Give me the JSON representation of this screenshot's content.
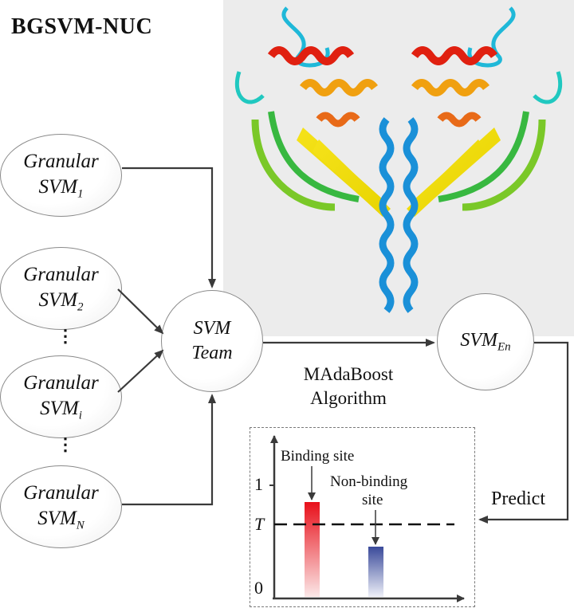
{
  "title": "BGSVM-NUC",
  "granular_svms": [
    {
      "word": "Granular",
      "svm": "SVM",
      "subscript": "1"
    },
    {
      "word": "Granular",
      "svm": "SVM",
      "subscript": "2"
    },
    {
      "word": "Granular",
      "svm": "SVM",
      "subscript": "i"
    },
    {
      "word": "Granular",
      "svm": "SVM",
      "subscript": "N"
    }
  ],
  "ellipsis": "⋮",
  "team": {
    "line1": "SVM",
    "line2": "Team"
  },
  "ensemble": {
    "svm": "SVM",
    "subscript": "En"
  },
  "algorithm": {
    "line1": "MAdaBoost",
    "line2": "Algorithm"
  },
  "predict_label": "Predict",
  "plot": {
    "binding_label": "Binding site",
    "nonbinding_label_line1": "Non-binding",
    "nonbinding_label_line2": "site",
    "tick_1": "1",
    "tick_t": "T",
    "tick_0": "0",
    "binding_value": 0.85,
    "nonbinding_value": 0.45,
    "threshold_value": 0.65,
    "binding_color": "#e8101a",
    "nonbinding_color": "#3a4a9a"
  },
  "colors": {
    "arrow": "#3a3a3a",
    "node_border": "#8a8a8a"
  }
}
